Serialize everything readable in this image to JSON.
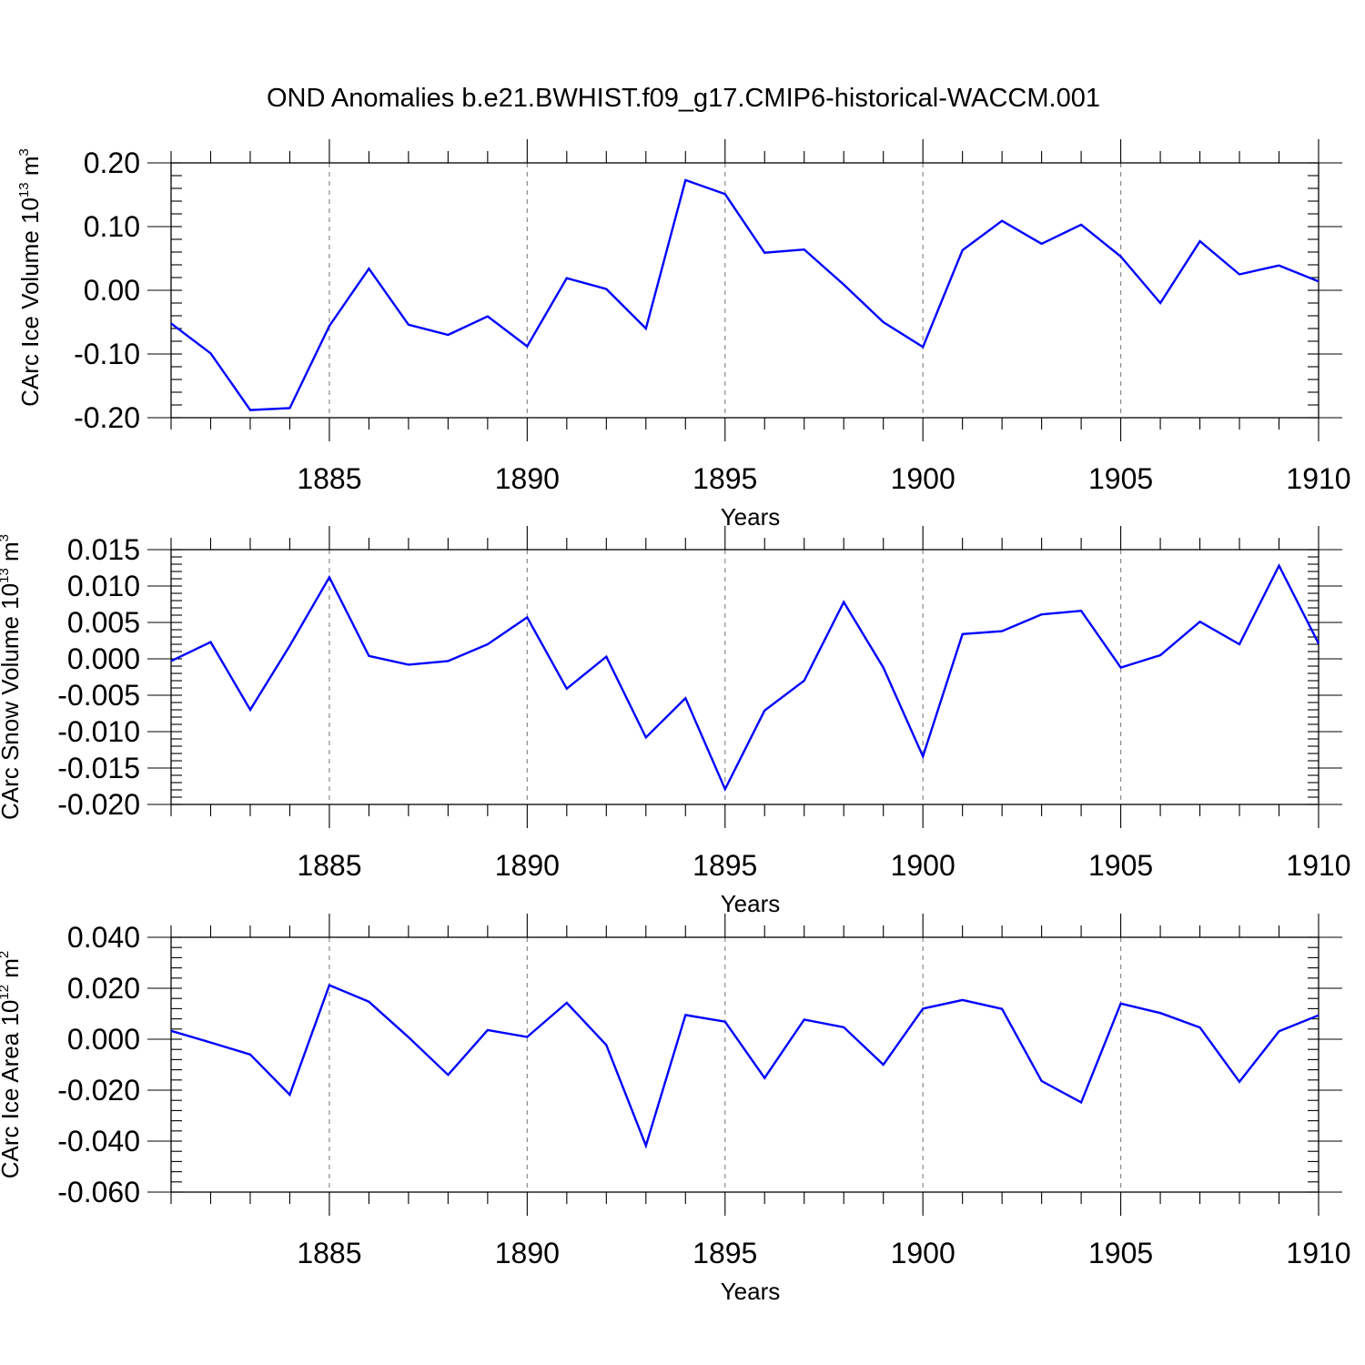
{
  "chart_data": [
    {
      "type": "line",
      "title": "OND Anomalies b.e21.BWHIST.f09_g17.CMIP6-historical-WACCM.001",
      "ylabel": {
        "main": "CArc Ice Volume 10",
        "exponent": "13",
        "unit": " m",
        "unit_exponent": "3"
      },
      "xlabel": "Years",
      "xlim": [
        1881,
        1910
      ],
      "ylim": [
        -0.2,
        0.2
      ],
      "x_ticks": [
        1885,
        1890,
        1895,
        1900,
        1905,
        1910
      ],
      "x_tick_labels": [
        "1885",
        "1890",
        "1895",
        "1900",
        "1905",
        "1910"
      ],
      "y_ticks": [
        -0.2,
        -0.1,
        0.0,
        0.1,
        0.2
      ],
      "y_tick_labels": [
        "-0.20",
        "-0.10",
        "0.00",
        "0.10",
        "0.20"
      ],
      "y_minor_step": 0.02,
      "series": [
        {
          "name": "CArc Ice Volume",
          "color": "#0000ff",
          "x": [
            1881,
            1882,
            1883,
            1884,
            1885,
            1886,
            1887,
            1888,
            1889,
            1890,
            1891,
            1892,
            1893,
            1894,
            1895,
            1896,
            1897,
            1898,
            1899,
            1900,
            1901,
            1902,
            1903,
            1904,
            1905,
            1906,
            1907,
            1908,
            1909,
            1910
          ],
          "values": [
            -0.052,
            -0.099,
            -0.188,
            -0.185,
            -0.056,
            0.034,
            -0.054,
            -0.07,
            -0.041,
            -0.088,
            0.019,
            0.002,
            -0.06,
            0.173,
            0.151,
            0.059,
            0.064,
            0.009,
            -0.05,
            -0.089,
            0.063,
            0.109,
            0.073,
            0.103,
            0.053,
            -0.02,
            0.077,
            0.025,
            0.039,
            0.014
          ]
        }
      ]
    },
    {
      "type": "line",
      "ylabel": {
        "main": "CArc Snow Volume 10",
        "exponent": "13",
        "unit": " m",
        "unit_exponent": "3"
      },
      "xlabel": "Years",
      "xlim": [
        1881,
        1910
      ],
      "ylim": [
        -0.02,
        0.015
      ],
      "x_ticks": [
        1885,
        1890,
        1895,
        1900,
        1905,
        1910
      ],
      "x_tick_labels": [
        "1885",
        "1890",
        "1895",
        "1900",
        "1905",
        "1910"
      ],
      "y_ticks": [
        -0.02,
        -0.015,
        -0.01,
        -0.005,
        0.0,
        0.005,
        0.01,
        0.015
      ],
      "y_tick_labels": [
        "-0.020",
        "-0.015",
        "-0.010",
        "-0.005",
        "0.000",
        "0.005",
        "0.010",
        "0.015"
      ],
      "y_minor_step": 0.001,
      "series": [
        {
          "name": "CArc Snow Volume",
          "color": "#0000ff",
          "x": [
            1881,
            1882,
            1883,
            1884,
            1885,
            1886,
            1887,
            1888,
            1889,
            1890,
            1891,
            1892,
            1893,
            1894,
            1895,
            1896,
            1897,
            1898,
            1899,
            1900,
            1901,
            1902,
            1903,
            1904,
            1905,
            1906,
            1907,
            1908,
            1909,
            1910
          ],
          "values": [
            -0.0003,
            0.0023,
            -0.007,
            0.0018,
            0.0112,
            0.0004,
            -0.0008,
            -0.0003,
            0.002,
            0.0057,
            -0.0041,
            0.0003,
            -0.0108,
            -0.0054,
            -0.0179,
            -0.0071,
            -0.003,
            0.0078,
            -0.0012,
            -0.0134,
            0.0034,
            0.0038,
            0.0061,
            0.0066,
            -0.0012,
            0.0005,
            0.0051,
            0.002,
            0.0128,
            0.0021
          ]
        }
      ]
    },
    {
      "type": "line",
      "ylabel": {
        "main": "CArc Ice Area 10",
        "exponent": "12",
        "unit": " m",
        "unit_exponent": "2"
      },
      "xlabel": "Years",
      "xlim": [
        1881,
        1910
      ],
      "ylim": [
        -0.06,
        0.04
      ],
      "x_ticks": [
        1885,
        1890,
        1895,
        1900,
        1905,
        1910
      ],
      "x_tick_labels": [
        "1885",
        "1890",
        "1895",
        "1900",
        "1905",
        "1910"
      ],
      "y_ticks": [
        -0.06,
        -0.04,
        -0.02,
        0.0,
        0.02,
        0.04
      ],
      "y_tick_labels": [
        "-0.060",
        "-0.040",
        "-0.020",
        "0.000",
        "0.020",
        "0.040"
      ],
      "y_minor_step": 0.004,
      "series": [
        {
          "name": "CArc Ice Area",
          "color": "#0000ff",
          "x": [
            1881,
            1882,
            1883,
            1884,
            1885,
            1886,
            1887,
            1888,
            1889,
            1890,
            1891,
            1892,
            1893,
            1894,
            1895,
            1896,
            1897,
            1898,
            1899,
            1900,
            1901,
            1902,
            1903,
            1904,
            1905,
            1906,
            1907,
            1908,
            1909,
            1910
          ],
          "values": [
            0.0033,
            -0.0013,
            -0.006,
            -0.0218,
            0.0212,
            0.0147,
            0.0008,
            -0.014,
            0.0036,
            0.0009,
            0.0143,
            -0.0023,
            -0.0418,
            0.0095,
            0.0069,
            -0.0152,
            0.0077,
            0.0047,
            -0.01,
            0.012,
            0.0154,
            0.0119,
            -0.0164,
            -0.0248,
            0.014,
            0.0103,
            0.0046,
            -0.0167,
            0.0031,
            0.0094
          ]
        }
      ]
    }
  ]
}
